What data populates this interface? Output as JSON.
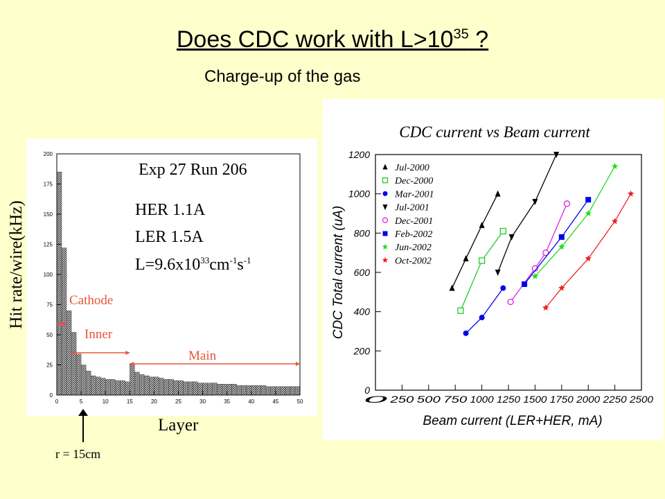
{
  "slide": {
    "title_main": "Does CDC work with L>10",
    "title_exp": "35",
    "title_end": " ?",
    "subtitle": "Charge-up of the gas"
  },
  "left_chart": {
    "annotation_run": "Exp 27 Run 206",
    "annotation_her": "HER 1.1A",
    "annotation_ler": "LER 1.5A",
    "annotation_lum_prefix": "L=9.6x10",
    "annotation_lum_exp1": "33",
    "annotation_lum_mid": "cm",
    "annotation_lum_exp2": "-1",
    "annotation_lum_mid2": "s",
    "annotation_lum_exp3": "-1",
    "label_cathode": "Cathode",
    "label_inner": "Inner",
    "label_main": "Main",
    "ylabel": "Hit rate/wire(kHz)",
    "xlabel": "Layer",
    "radius_note": "r = 15cm",
    "region_color": "#e8553a"
  },
  "chart_data": [
    {
      "type": "bar",
      "xlabel": "Layer",
      "ylabel": "Hit rate/wire(kHz)",
      "xlim": [
        0,
        50
      ],
      "ylim": [
        0,
        200
      ],
      "x_ticks": [
        0,
        5,
        10,
        15,
        20,
        25,
        30,
        35,
        40,
        45,
        50
      ],
      "y_ticks": [
        0,
        25,
        50,
        75,
        100,
        125,
        150,
        175,
        200
      ],
      "x": [
        0,
        1,
        2,
        3,
        4,
        5,
        6,
        7,
        8,
        9,
        10,
        11,
        12,
        13,
        14,
        15,
        16,
        17,
        18,
        19,
        20,
        21,
        22,
        23,
        24,
        25,
        26,
        27,
        28,
        29,
        30,
        31,
        32,
        33,
        34,
        35,
        36,
        37,
        38,
        39,
        40,
        41,
        42,
        43,
        44,
        45,
        46,
        47,
        48,
        49
      ],
      "values": [
        185,
        122,
        70,
        52,
        34,
        25,
        20,
        16,
        15,
        14,
        13,
        13,
        12,
        12,
        11,
        26,
        19,
        17,
        16,
        15,
        15,
        14,
        13,
        13,
        12,
        12,
        11,
        11,
        11,
        10,
        10,
        10,
        10,
        9,
        9,
        9,
        9,
        8,
        8,
        8,
        8,
        8,
        8,
        7,
        7,
        7,
        7,
        7,
        7,
        7
      ]
    },
    {
      "type": "scatter",
      "title": "CDC current vs Beam current",
      "xlabel": "Beam current (LER+HER, mA)",
      "ylabel": "CDC Total current (uA)",
      "xlim": [
        0,
        2500
      ],
      "ylim": [
        0,
        1200
      ],
      "x_ticks": [
        "0",
        "250",
        "500",
        "750",
        "1000",
        "1250",
        "1500",
        "1750",
        "2000",
        "2250",
        "2500"
      ],
      "y_ticks": [
        "0",
        "200",
        "400",
        "600",
        "800",
        "1000",
        "1200"
      ],
      "series": [
        {
          "name": "Jul-2000",
          "marker": "triangle-up",
          "color": "#000000",
          "x": [
            720,
            850,
            1000,
            1150
          ],
          "y": [
            520,
            670,
            840,
            1000
          ]
        },
        {
          "name": "Dec-2000",
          "marker": "open-square",
          "color": "#22cc22",
          "x": [
            800,
            1000,
            1200
          ],
          "y": [
            405,
            660,
            810
          ]
        },
        {
          "name": "Mar-2001",
          "marker": "filled-circle",
          "color": "#0000ee",
          "x": [
            850,
            1000,
            1200
          ],
          "y": [
            290,
            370,
            520
          ]
        },
        {
          "name": "Jul-2001",
          "marker": "triangle-down",
          "color": "#000000",
          "x": [
            1150,
            1280,
            1500,
            1700
          ],
          "y": [
            600,
            780,
            960,
            1200
          ]
        },
        {
          "name": "Dec-2001",
          "marker": "open-circle",
          "color": "#dd22dd",
          "x": [
            1270,
            1500,
            1600,
            1800
          ],
          "y": [
            450,
            620,
            700,
            950
          ]
        },
        {
          "name": "Feb-2002",
          "marker": "filled-square",
          "color": "#0000ee",
          "x": [
            1400,
            1750,
            2000
          ],
          "y": [
            540,
            780,
            970
          ]
        },
        {
          "name": "Jun-2002",
          "marker": "star",
          "color": "#22dd22",
          "x": [
            1500,
            1750,
            2000,
            2250
          ],
          "y": [
            580,
            730,
            900,
            1140
          ]
        },
        {
          "name": "Oct-2002",
          "marker": "star",
          "color": "#ee2222",
          "x": [
            1600,
            1750,
            2000,
            2250,
            2400
          ],
          "y": [
            420,
            520,
            670,
            860,
            1000
          ]
        }
      ]
    }
  ]
}
